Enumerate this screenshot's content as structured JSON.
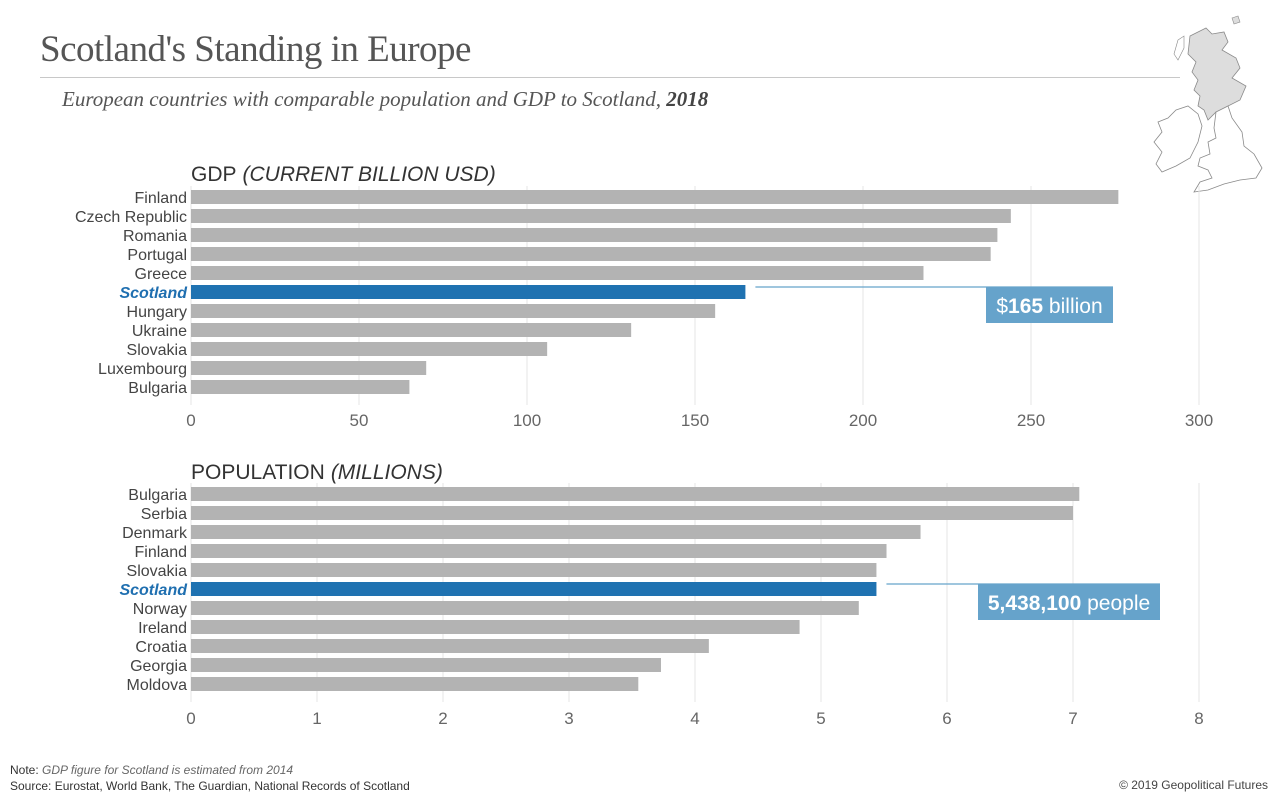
{
  "header": {
    "title": "Scotland's Standing in Europe",
    "subtitle_prefix": "European countries with comparable population and GDP to Scotland, ",
    "subtitle_year": "2018"
  },
  "footer": {
    "note_label": "Note:",
    "note_text": "GDP figure for Scotland is estimated from 2014",
    "source": "Source: Eurostat, World Bank, The Guardian, National Records of Scotland",
    "copyright": "© 2019 Geopolitical Futures"
  },
  "colors": {
    "bar": "#b3b3b3",
    "highlight": "#1f72b1",
    "callout": "#66a3cb",
    "grid": "#e6e6e6"
  },
  "chart_data": [
    {
      "type": "bar",
      "orientation": "horizontal",
      "title": "GDP",
      "title_unit": "(CURRENT BILLION USD)",
      "xlabel": "",
      "ylabel": "",
      "xlim": [
        0,
        300
      ],
      "ticks": [
        0,
        50,
        100,
        150,
        200,
        250,
        300
      ],
      "grid": true,
      "highlight": "Scotland",
      "categories": [
        "Finland",
        "Czech Republic",
        "Romania",
        "Portugal",
        "Greece",
        "Scotland",
        "Hungary",
        "Ukraine",
        "Slovakia",
        "Luxembourg",
        "Bulgaria"
      ],
      "values": [
        276,
        244,
        240,
        238,
        218,
        165,
        156,
        131,
        106,
        70,
        65
      ],
      "annotation": {
        "prefix": "$",
        "bold": "165",
        "suffix": " billion"
      }
    },
    {
      "type": "bar",
      "orientation": "horizontal",
      "title": "POPULATION",
      "title_unit": "(MILLIONS)",
      "xlabel": "",
      "ylabel": "",
      "xlim": [
        0,
        8
      ],
      "ticks": [
        0,
        1,
        2,
        3,
        4,
        5,
        6,
        7,
        8
      ],
      "grid": true,
      "highlight": "Scotland",
      "categories": [
        "Bulgaria",
        "Serbia",
        "Denmark",
        "Finland",
        "Slovakia",
        "Scotland",
        "Norway",
        "Ireland",
        "Croatia",
        "Georgia",
        "Moldova"
      ],
      "values": [
        7.05,
        7.0,
        5.79,
        5.52,
        5.44,
        5.44,
        5.3,
        4.83,
        4.11,
        3.73,
        3.55
      ],
      "annotation": {
        "prefix": "",
        "bold": "5,438,100",
        "suffix": " people"
      }
    }
  ]
}
